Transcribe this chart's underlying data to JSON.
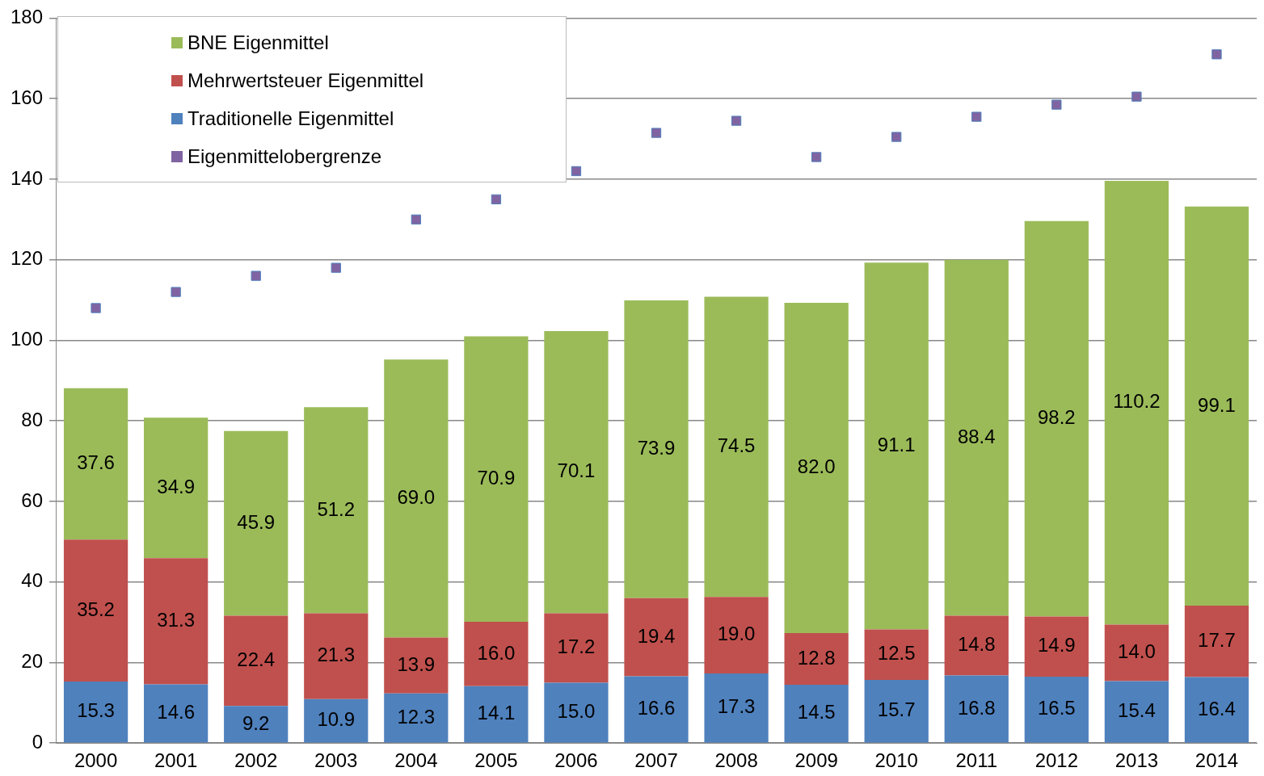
{
  "chart_data": {
    "type": "bar",
    "stacked": true,
    "categories": [
      "2000",
      "2001",
      "2002",
      "2003",
      "2004",
      "2005",
      "2006",
      "2007",
      "2008",
      "2009",
      "2010",
      "2011",
      "2012",
      "2013",
      "2014"
    ],
    "series": [
      {
        "name": "Traditionelle Eigenmittel",
        "color": "#4f81bd",
        "values": [
          15.3,
          14.6,
          9.2,
          10.9,
          12.3,
          14.1,
          15.0,
          16.6,
          17.3,
          14.5,
          15.7,
          16.8,
          16.5,
          15.4,
          16.4
        ],
        "value_labels": [
          "15.3",
          "14.6",
          "9.2",
          "10.9",
          "12.3",
          "14.1",
          "15.0",
          "16.6",
          "17.3",
          "14.5",
          "15.7",
          "16.8",
          "16.5",
          "15.4",
          "16.4"
        ]
      },
      {
        "name": "Mehrwertsteuer Eigenmittel",
        "color": "#c0504d",
        "values": [
          35.2,
          31.3,
          22.4,
          21.3,
          13.9,
          16.0,
          17.2,
          19.4,
          19.0,
          12.8,
          12.5,
          14.8,
          14.9,
          14.0,
          17.7
        ],
        "value_labels": [
          "35.2",
          "31.3",
          "22.4",
          "21.3",
          "13.9",
          "16.0",
          "17.2",
          "19.4",
          "19.0",
          "12.8",
          "12.5",
          "14.8",
          "14.9",
          "14.0",
          "17.7"
        ]
      },
      {
        "name": "BNE Eigenmittel",
        "color": "#9bbb59",
        "values": [
          37.6,
          34.9,
          45.9,
          51.2,
          69.0,
          70.9,
          70.1,
          73.9,
          74.5,
          82.0,
          91.1,
          88.4,
          98.2,
          110.2,
          99.1
        ],
        "value_labels": [
          "37.6",
          "34.9",
          "45.9",
          "51.2",
          "69.0",
          "70.9",
          "70.1",
          "73.9",
          "74.5",
          "82.0",
          "91.1",
          "88.4",
          "98.2",
          "110.2",
          "99.1"
        ]
      },
      {
        "name": "Eigenmittelobergrenze",
        "type": "scatter",
        "marker": "square",
        "color": "#8064a2",
        "values": [
          108,
          112,
          116,
          118,
          130,
          135,
          142,
          151.5,
          154.5,
          145.5,
          150.5,
          155.5,
          158.5,
          160.5,
          171
        ]
      }
    ],
    "ylim": [
      0,
      180
    ],
    "yticks": [
      0,
      20,
      40,
      60,
      80,
      100,
      120,
      140,
      160,
      180
    ],
    "grid": "y",
    "legend": "top left"
  }
}
